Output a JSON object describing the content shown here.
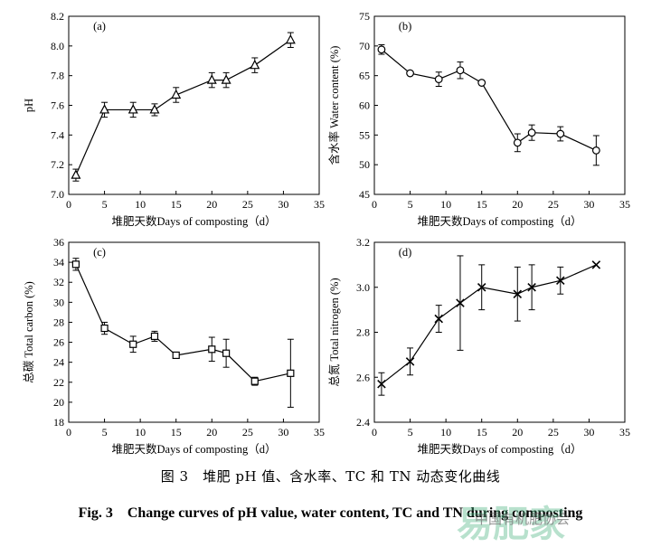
{
  "chart_data": [
    {
      "type": "line",
      "panel": "(a)",
      "xlabel": "堆肥天数Days of composting（d）",
      "ylabel": "pH",
      "xlim": [
        0,
        35
      ],
      "ylim": [
        7.0,
        8.2
      ],
      "xticks": [
        "0",
        "5",
        "10",
        "15",
        "20",
        "25",
        "30",
        "35"
      ],
      "yticks": [
        "7.0",
        "7.2",
        "7.4",
        "7.6",
        "7.8",
        "8.0",
        "8.2"
      ],
      "marker": "triangle",
      "x": [
        1,
        5,
        9,
        12,
        15,
        20,
        22,
        26,
        31
      ],
      "y": [
        7.13,
        7.57,
        7.57,
        7.57,
        7.67,
        7.77,
        7.77,
        7.87,
        8.04
      ],
      "err": [
        0.04,
        0.05,
        0.05,
        0.04,
        0.05,
        0.05,
        0.05,
        0.05,
        0.05
      ]
    },
    {
      "type": "line",
      "panel": "(b)",
      "xlabel": "堆肥天数Days of composting（d）",
      "ylabel": "含水率 Water content (%)",
      "xlim": [
        0,
        35
      ],
      "ylim": [
        45,
        75
      ],
      "xticks": [
        "0",
        "5",
        "10",
        "15",
        "20",
        "25",
        "30",
        "35"
      ],
      "yticks": [
        "45",
        "50",
        "55",
        "60",
        "65",
        "70",
        "75"
      ],
      "marker": "circle",
      "x": [
        1,
        5,
        9,
        12,
        15,
        20,
        22,
        26,
        31
      ],
      "y": [
        69.4,
        65.4,
        64.4,
        65.9,
        63.8,
        53.7,
        55.4,
        55.2,
        52.4
      ],
      "err": [
        0.8,
        0.2,
        1.2,
        1.4,
        0.2,
        1.5,
        1.3,
        1.2,
        2.5
      ]
    },
    {
      "type": "line",
      "panel": "(c)",
      "xlabel": "堆肥天数Days of composting（d）",
      "ylabel": "总碳 Total carbon (%)",
      "xlim": [
        0,
        35
      ],
      "ylim": [
        18,
        36
      ],
      "xticks": [
        "0",
        "5",
        "10",
        "15",
        "20",
        "25",
        "30",
        "35"
      ],
      "yticks": [
        "18",
        "20",
        "22",
        "24",
        "26",
        "28",
        "30",
        "32",
        "34",
        "36"
      ],
      "marker": "square",
      "x": [
        1,
        5,
        9,
        12,
        15,
        20,
        22,
        26,
        31
      ],
      "y": [
        33.8,
        27.4,
        25.8,
        26.6,
        24.7,
        25.3,
        24.9,
        22.1,
        22.9
      ],
      "err": [
        0.6,
        0.6,
        0.8,
        0.5,
        0.2,
        1.2,
        1.4,
        0.4,
        3.4
      ]
    },
    {
      "type": "line",
      "panel": "(d)",
      "xlabel": "堆肥天数Days of composting（d）",
      "ylabel": "总氮 Total nitrogen (%)",
      "xlim": [
        0,
        35
      ],
      "ylim": [
        2.4,
        3.2
      ],
      "xticks": [
        "0",
        "5",
        "10",
        "15",
        "20",
        "25",
        "30",
        "35"
      ],
      "yticks": [
        "2.4",
        "2.6",
        "2.8",
        "3.0",
        "3.2"
      ],
      "marker": "x",
      "x": [
        1,
        5,
        9,
        12,
        15,
        20,
        22,
        26,
        31
      ],
      "y": [
        2.57,
        2.67,
        2.86,
        2.93,
        3.0,
        2.97,
        3.0,
        3.03,
        3.1
      ],
      "err": [
        0.05,
        0.06,
        0.06,
        0.21,
        0.1,
        0.12,
        0.1,
        0.06,
        0.0
      ]
    }
  ],
  "caption_cn": "图 3　堆肥 pH 值、含水率、TC 和 TN 动态变化曲线",
  "caption_en": "Fig. 3　Change curves of pH value, water content, TC and TN during composting",
  "watermark": {
    "big": "易肥家",
    "small": "中国有机肥协会"
  }
}
